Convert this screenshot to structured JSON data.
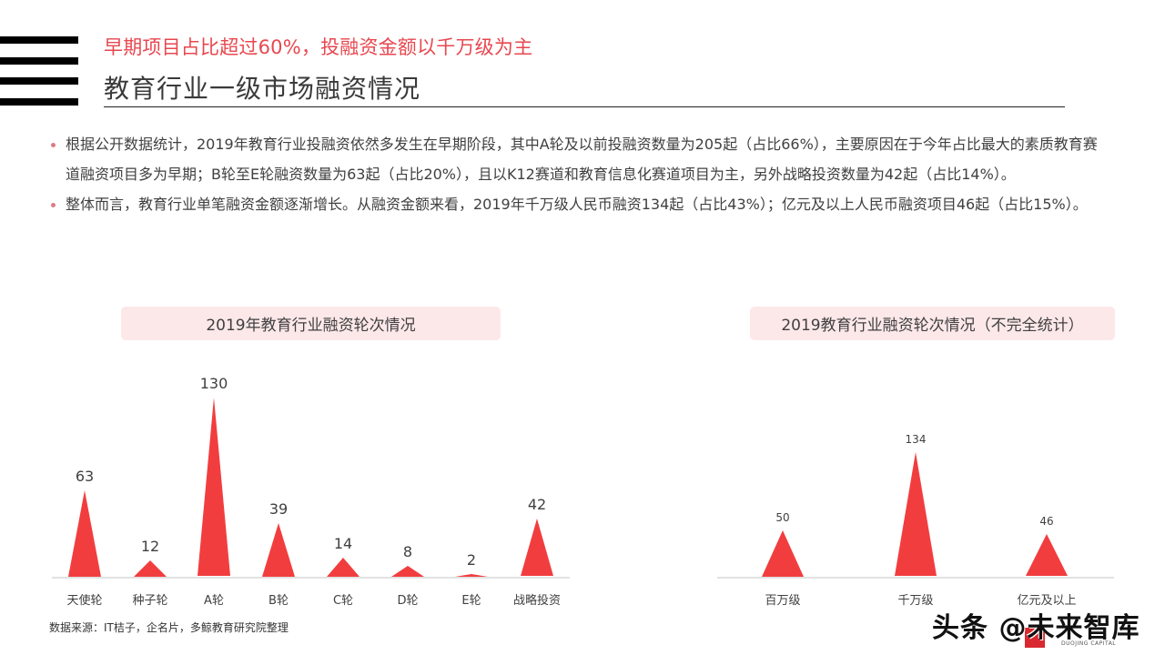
{
  "header": {
    "subtitle": "早期项目占比超过60%，投融资金额以千万级为主",
    "title": "教育行业一级市场融资情况"
  },
  "bullets": [
    {
      "text": "根据公开数据统计，2019年教育行业投融资依然多发生在早期阶段，其中A轮及以前投融资数量为205起（占比66%），主要原因在于今年占比最大的素质教育赛道融资项目多为早期；B轮至E轮融资数量为63起（占比20%），且以K12赛道和教育信息化赛道项目为主，另外战略投资数量为42起（占比14%）。"
    },
    {
      "text": "整体而言，教育行业单笔融资金额逐渐增长。从融资金额来看，2019年千万级人民币融资134起（占比43%）；亿元及以上人民币融资项目46起（占比15%）。"
    }
  ],
  "colors": {
    "accent_red": "#e8474f",
    "peak_red": "#f23d3f",
    "title_box_bg": "#fde8e9",
    "bullet_dot": "#e07a86"
  },
  "chart_data": [
    {
      "type": "bar",
      "title": "2019年教育行业融资轮次情况",
      "categories": [
        "天使轮",
        "种子轮",
        "A轮",
        "B轮",
        "C轮",
        "D轮",
        "E轮",
        "战略投资"
      ],
      "values": [
        63,
        12,
        130,
        39,
        14,
        8,
        2,
        42
      ],
      "xlabel": "",
      "ylabel": "",
      "ylim": [
        0,
        140
      ],
      "grid": false,
      "style": "pictorial-triangle"
    },
    {
      "type": "bar",
      "title": "2019教育行业融资轮次情况（不完全统计）",
      "categories": [
        "百万级",
        "千万级",
        "亿元及以上"
      ],
      "values": [
        50,
        134,
        46
      ],
      "xlabel": "",
      "ylabel": "",
      "ylim": [
        0,
        140
      ],
      "grid": false,
      "style": "pictorial-triangle"
    }
  ],
  "footer": {
    "source": "数据来源：IT桔子，企名片，多鲸教育研究院整理"
  },
  "watermark": {
    "text": "头条 @未来智库",
    "logo_sub": "DUOJING CAPITAL"
  }
}
